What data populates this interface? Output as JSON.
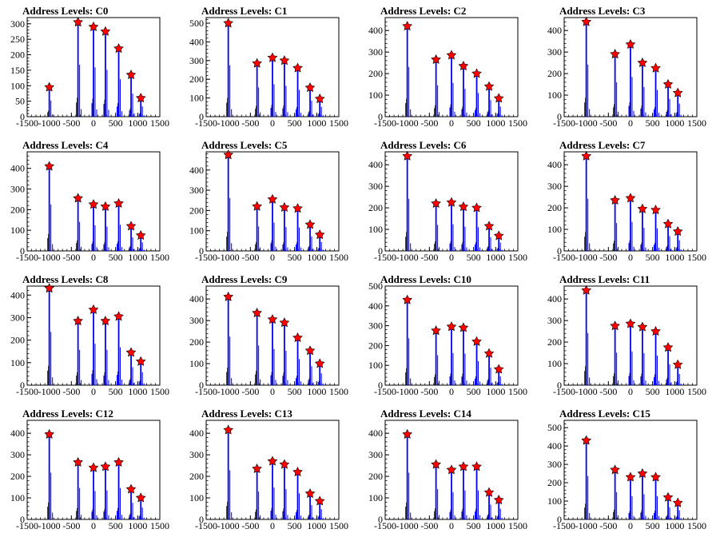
{
  "colors": {
    "bar": "#0000ff",
    "marker": "#ff0000",
    "axis": "#000000",
    "background": "#ffffff"
  },
  "chart_data": [
    {
      "type": "bar",
      "title": "Address Levels: C0",
      "xlim": [
        -1500,
        1500
      ],
      "ylim": [
        0,
        320
      ],
      "yticks": [
        0,
        50,
        100,
        150,
        200,
        250,
        300
      ],
      "xticks": [
        -1500,
        -1000,
        -500,
        0,
        500,
        1000,
        1500
      ],
      "peaks": [
        {
          "x": -1000,
          "y": 95
        },
        {
          "x": -350,
          "y": 305
        },
        {
          "x": 0,
          "y": 290
        },
        {
          "x": 270,
          "y": 275
        },
        {
          "x": 570,
          "y": 220
        },
        {
          "x": 850,
          "y": 135
        },
        {
          "x": 1070,
          "y": 60
        }
      ]
    },
    {
      "type": "bar",
      "title": "Address Levels: C1",
      "xlim": [
        -1500,
        1500
      ],
      "ylim": [
        0,
        530
      ],
      "yticks": [
        0,
        100,
        200,
        300,
        400,
        500
      ],
      "xticks": [
        -1500,
        -1000,
        -500,
        0,
        500,
        1000,
        1500
      ],
      "peaks": [
        {
          "x": -1000,
          "y": 500
        },
        {
          "x": -350,
          "y": 285
        },
        {
          "x": 0,
          "y": 315
        },
        {
          "x": 270,
          "y": 300
        },
        {
          "x": 570,
          "y": 260
        },
        {
          "x": 850,
          "y": 155
        },
        {
          "x": 1070,
          "y": 95
        }
      ]
    },
    {
      "type": "bar",
      "title": "Address Levels: C2",
      "xlim": [
        -1500,
        1500
      ],
      "ylim": [
        0,
        460
      ],
      "yticks": [
        0,
        100,
        200,
        300,
        400
      ],
      "xticks": [
        -1500,
        -1000,
        -500,
        0,
        500,
        1000,
        1500
      ],
      "peaks": [
        {
          "x": -1000,
          "y": 420
        },
        {
          "x": -350,
          "y": 265
        },
        {
          "x": 0,
          "y": 285
        },
        {
          "x": 270,
          "y": 235
        },
        {
          "x": 570,
          "y": 200
        },
        {
          "x": 850,
          "y": 140
        },
        {
          "x": 1070,
          "y": 85
        }
      ]
    },
    {
      "type": "bar",
      "title": "Address Levels: C3",
      "xlim": [
        -1500,
        1500
      ],
      "ylim": [
        0,
        460
      ],
      "yticks": [
        0,
        100,
        200,
        300,
        400
      ],
      "xticks": [
        -1500,
        -1000,
        -500,
        0,
        500,
        1000,
        1500
      ],
      "peaks": [
        {
          "x": -1000,
          "y": 440
        },
        {
          "x": -350,
          "y": 290
        },
        {
          "x": 0,
          "y": 335
        },
        {
          "x": 270,
          "y": 250
        },
        {
          "x": 570,
          "y": 225
        },
        {
          "x": 850,
          "y": 150
        },
        {
          "x": 1070,
          "y": 110
        }
      ]
    },
    {
      "type": "bar",
      "title": "Address Levels: C4",
      "xlim": [
        -1500,
        1500
      ],
      "ylim": [
        0,
        480
      ],
      "yticks": [
        0,
        100,
        200,
        300,
        400
      ],
      "xticks": [
        -1500,
        -1000,
        -500,
        0,
        500,
        1000,
        1500
      ],
      "peaks": [
        {
          "x": -1000,
          "y": 410
        },
        {
          "x": -350,
          "y": 255
        },
        {
          "x": 0,
          "y": 225
        },
        {
          "x": 270,
          "y": 215
        },
        {
          "x": 570,
          "y": 230
        },
        {
          "x": 850,
          "y": 120
        },
        {
          "x": 1070,
          "y": 75
        }
      ]
    },
    {
      "type": "bar",
      "title": "Address Levels: C5",
      "xlim": [
        -1500,
        1500
      ],
      "ylim": [
        0,
        490
      ],
      "yticks": [
        0,
        100,
        200,
        300,
        400
      ],
      "xticks": [
        -1500,
        -1000,
        -500,
        0,
        500,
        1000,
        1500
      ],
      "peaks": [
        {
          "x": -1000,
          "y": 475
        },
        {
          "x": -350,
          "y": 220
        },
        {
          "x": 0,
          "y": 255
        },
        {
          "x": 270,
          "y": 215
        },
        {
          "x": 570,
          "y": 210
        },
        {
          "x": 850,
          "y": 130
        },
        {
          "x": 1070,
          "y": 80
        }
      ]
    },
    {
      "type": "bar",
      "title": "Address Levels: C6",
      "xlim": [
        -1500,
        1500
      ],
      "ylim": [
        0,
        460
      ],
      "yticks": [
        0,
        100,
        200,
        300,
        400
      ],
      "xticks": [
        -1500,
        -1000,
        -500,
        0,
        500,
        1000,
        1500
      ],
      "peaks": [
        {
          "x": -1000,
          "y": 440
        },
        {
          "x": -350,
          "y": 220
        },
        {
          "x": 0,
          "y": 225
        },
        {
          "x": 270,
          "y": 205
        },
        {
          "x": 570,
          "y": 200
        },
        {
          "x": 850,
          "y": 115
        },
        {
          "x": 1070,
          "y": 70
        }
      ]
    },
    {
      "type": "bar",
      "title": "Address Levels: C7",
      "xlim": [
        -1500,
        1500
      ],
      "ylim": [
        0,
        460
      ],
      "yticks": [
        0,
        100,
        200,
        300,
        400
      ],
      "xticks": [
        -1500,
        -1000,
        -500,
        0,
        500,
        1000,
        1500
      ],
      "peaks": [
        {
          "x": -1000,
          "y": 440
        },
        {
          "x": -350,
          "y": 235
        },
        {
          "x": 0,
          "y": 245
        },
        {
          "x": 270,
          "y": 195
        },
        {
          "x": 570,
          "y": 190
        },
        {
          "x": 850,
          "y": 125
        },
        {
          "x": 1070,
          "y": 90
        }
      ]
    },
    {
      "type": "bar",
      "title": "Address Levels: C8",
      "xlim": [
        -1500,
        1500
      ],
      "ylim": [
        0,
        440
      ],
      "yticks": [
        0,
        100,
        200,
        300,
        400
      ],
      "xticks": [
        -1500,
        -1000,
        -500,
        0,
        500,
        1000,
        1500
      ],
      "peaks": [
        {
          "x": -1000,
          "y": 430
        },
        {
          "x": -350,
          "y": 285
        },
        {
          "x": 0,
          "y": 335
        },
        {
          "x": 270,
          "y": 285
        },
        {
          "x": 570,
          "y": 305
        },
        {
          "x": 850,
          "y": 145
        },
        {
          "x": 1070,
          "y": 105
        }
      ]
    },
    {
      "type": "bar",
      "title": "Address Levels: C9",
      "xlim": [
        -1500,
        1500
      ],
      "ylim": [
        0,
        460
      ],
      "yticks": [
        0,
        100,
        200,
        300,
        400
      ],
      "xticks": [
        -1500,
        -1000,
        -500,
        0,
        500,
        1000,
        1500
      ],
      "peaks": [
        {
          "x": -1000,
          "y": 410
        },
        {
          "x": -350,
          "y": 335
        },
        {
          "x": 0,
          "y": 305
        },
        {
          "x": 270,
          "y": 290
        },
        {
          "x": 570,
          "y": 220
        },
        {
          "x": 850,
          "y": 160
        },
        {
          "x": 1070,
          "y": 100
        }
      ]
    },
    {
      "type": "bar",
      "title": "Address Levels: C10",
      "xlim": [
        -1500,
        1500
      ],
      "ylim": [
        0,
        500
      ],
      "yticks": [
        0,
        100,
        200,
        300,
        400,
        500
      ],
      "xticks": [
        -1500,
        -1000,
        -500,
        0,
        500,
        1000,
        1500
      ],
      "peaks": [
        {
          "x": -1000,
          "y": 430
        },
        {
          "x": -350,
          "y": 275
        },
        {
          "x": 0,
          "y": 295
        },
        {
          "x": 270,
          "y": 290
        },
        {
          "x": 570,
          "y": 220
        },
        {
          "x": 850,
          "y": 160
        },
        {
          "x": 1070,
          "y": 80
        }
      ]
    },
    {
      "type": "bar",
      "title": "Address Levels: C11",
      "xlim": [
        -1500,
        1500
      ],
      "ylim": [
        0,
        460
      ],
      "yticks": [
        0,
        100,
        200,
        300,
        400
      ],
      "xticks": [
        -1500,
        -1000,
        -500,
        0,
        500,
        1000,
        1500
      ],
      "peaks": [
        {
          "x": -1000,
          "y": 440
        },
        {
          "x": -350,
          "y": 275
        },
        {
          "x": 0,
          "y": 285
        },
        {
          "x": 270,
          "y": 270
        },
        {
          "x": 570,
          "y": 250
        },
        {
          "x": 850,
          "y": 175
        },
        {
          "x": 1070,
          "y": 95
        }
      ]
    },
    {
      "type": "bar",
      "title": "Address Levels: C12",
      "xlim": [
        -1500,
        1500
      ],
      "ylim": [
        0,
        460
      ],
      "yticks": [
        0,
        100,
        200,
        300,
        400
      ],
      "xticks": [
        -1500,
        -1000,
        -500,
        0,
        500,
        1000,
        1500
      ],
      "peaks": [
        {
          "x": -1000,
          "y": 395
        },
        {
          "x": -350,
          "y": 265
        },
        {
          "x": 0,
          "y": 240
        },
        {
          "x": 270,
          "y": 245
        },
        {
          "x": 570,
          "y": 265
        },
        {
          "x": 850,
          "y": 140
        },
        {
          "x": 1070,
          "y": 100
        }
      ]
    },
    {
      "type": "bar",
      "title": "Address Levels: C13",
      "xlim": [
        -1500,
        1500
      ],
      "ylim": [
        0,
        460
      ],
      "yticks": [
        0,
        100,
        200,
        300,
        400
      ],
      "xticks": [
        -1500,
        -1000,
        -500,
        0,
        500,
        1000,
        1500
      ],
      "peaks": [
        {
          "x": -1000,
          "y": 415
        },
        {
          "x": -350,
          "y": 235
        },
        {
          "x": 0,
          "y": 270
        },
        {
          "x": 270,
          "y": 255
        },
        {
          "x": 570,
          "y": 220
        },
        {
          "x": 850,
          "y": 120
        },
        {
          "x": 1070,
          "y": 85
        }
      ]
    },
    {
      "type": "bar",
      "title": "Address Levels: C14",
      "xlim": [
        -1500,
        1500
      ],
      "ylim": [
        0,
        460
      ],
      "yticks": [
        0,
        100,
        200,
        300,
        400
      ],
      "xticks": [
        -1500,
        -1000,
        -500,
        0,
        500,
        1000,
        1500
      ],
      "peaks": [
        {
          "x": -1000,
          "y": 395
        },
        {
          "x": -350,
          "y": 255
        },
        {
          "x": 0,
          "y": 230
        },
        {
          "x": 270,
          "y": 245
        },
        {
          "x": 570,
          "y": 245
        },
        {
          "x": 850,
          "y": 125
        },
        {
          "x": 1070,
          "y": 90
        }
      ]
    },
    {
      "type": "bar",
      "title": "Address Levels: C15",
      "xlim": [
        -1500,
        1500
      ],
      "ylim": [
        0,
        540
      ],
      "yticks": [
        0,
        100,
        200,
        300,
        400,
        500
      ],
      "xticks": [
        -1500,
        -1000,
        -500,
        0,
        500,
        1000,
        1500
      ],
      "peaks": [
        {
          "x": -1000,
          "y": 430
        },
        {
          "x": -350,
          "y": 270
        },
        {
          "x": 0,
          "y": 230
        },
        {
          "x": 270,
          "y": 250
        },
        {
          "x": 570,
          "y": 230
        },
        {
          "x": 850,
          "y": 120
        },
        {
          "x": 1070,
          "y": 90
        }
      ]
    }
  ]
}
